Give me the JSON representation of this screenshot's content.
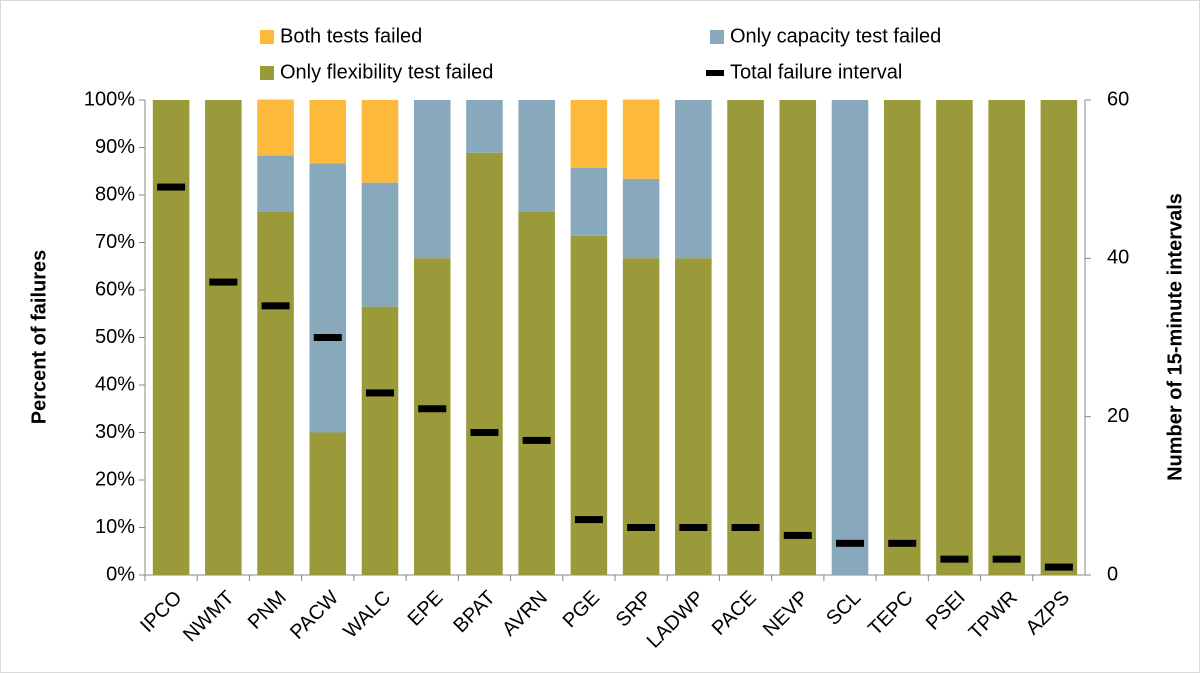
{
  "chart_data": {
    "type": "bar",
    "stacked": true,
    "y_label": "Percent of failures",
    "y2_label": "Number of 15-minute intervals",
    "categories": [
      "IPCO",
      "NWMT",
      "PNM",
      "PACW",
      "WALC",
      "EPE",
      "BPAT",
      "AVRN",
      "PGE",
      "SRP",
      "LADWP",
      "PACE",
      "NEVP",
      "SCL",
      "TEPC",
      "PSEI",
      "TPWR",
      "AZPS"
    ],
    "series": [
      {
        "name": "Only flexibility test failed",
        "color": "#9a9a3a",
        "values": [
          100,
          100,
          76.5,
          30,
          56.5,
          66.7,
          88.9,
          76.5,
          71.4,
          66.7,
          66.7,
          100,
          100,
          0,
          100,
          100,
          100,
          100
        ]
      },
      {
        "name": "Only capacity test failed",
        "color": "#87a9bb",
        "values": [
          0,
          0,
          11.8,
          56.7,
          26.1,
          33.3,
          11.1,
          23.5,
          14.3,
          16.7,
          33.3,
          0,
          0,
          100,
          0,
          0,
          0,
          0
        ]
      },
      {
        "name": "Both tests failed",
        "color": "#fdb93c",
        "values": [
          0,
          0,
          11.8,
          13.3,
          17.4,
          0,
          0,
          0,
          14.3,
          16.7,
          0,
          0,
          0,
          0,
          0,
          0,
          0,
          0
        ]
      },
      {
        "name": "Total failure interval",
        "color": "#000000",
        "type": "marker",
        "axis": "y2",
        "values": [
          49,
          37,
          34,
          30,
          23,
          21,
          18,
          17,
          7,
          6,
          6,
          6,
          5,
          4,
          4,
          2,
          2,
          1
        ]
      }
    ],
    "ylim": [
      0,
      100
    ],
    "yticks": [
      {
        "value": 0,
        "label": "0%"
      },
      {
        "value": 10,
        "label": "10%"
      },
      {
        "value": 20,
        "label": "20%"
      },
      {
        "value": 30,
        "label": "30%"
      },
      {
        "value": 40,
        "label": "40%"
      },
      {
        "value": 50,
        "label": "50%"
      },
      {
        "value": 60,
        "label": "60%"
      },
      {
        "value": 70,
        "label": "70%"
      },
      {
        "value": 80,
        "label": "80%"
      },
      {
        "value": 90,
        "label": "90%"
      },
      {
        "value": 100,
        "label": "100%"
      }
    ],
    "y2lim": [
      0,
      60
    ],
    "y2ticks": [
      0,
      20,
      40,
      60
    ],
    "grid": false
  }
}
